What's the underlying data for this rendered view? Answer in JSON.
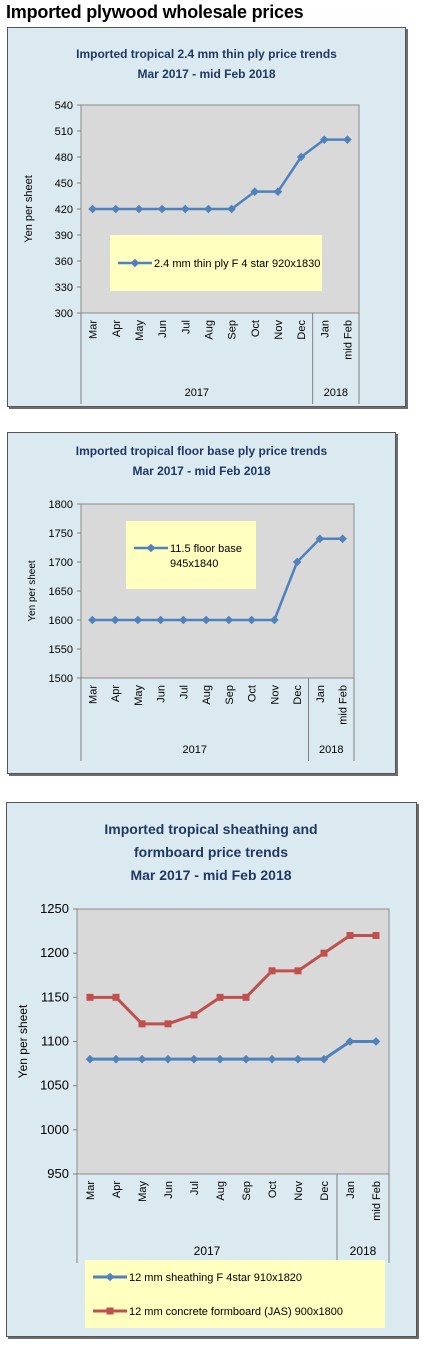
{
  "page": {
    "title": "Imported plywood wholesale prices"
  },
  "colors": {
    "panel_bg": "#dbeaf1",
    "plot_bg": "#d9d9d9",
    "blue_series": "#4f81bd",
    "red_series": "#c0504d",
    "legend_bg": "#ffffc0",
    "title": "#1f3864"
  },
  "chart_data": [
    {
      "type": "line",
      "title_lines": [
        "Imported tropical 2.4 mm thin ply price trends",
        "Mar 2017 - mid Feb 2018"
      ],
      "ylabel": "Yen per sheet",
      "ylim": [
        300,
        540
      ],
      "yticks": [
        300,
        330,
        360,
        390,
        420,
        450,
        480,
        510,
        540
      ],
      "categories": [
        "Mar",
        "Apr",
        "May",
        "Jun",
        "Jul",
        "Aug",
        "Sep",
        "Oct",
        "Nov",
        "Dec",
        "Jan",
        "mid Feb"
      ],
      "year_groups": [
        {
          "label": "2017",
          "count": 10
        },
        {
          "label": "2018",
          "count": 2
        }
      ],
      "grid": false,
      "legend_position": "center-left",
      "series": [
        {
          "name": "2.4 mm thin ply F 4 star 920x1830",
          "color": "#4f81bd",
          "marker": "diamond",
          "values": [
            420,
            420,
            420,
            420,
            420,
            420,
            420,
            440,
            440,
            480,
            500,
            500
          ]
        }
      ]
    },
    {
      "type": "line",
      "title_lines": [
        "Imported tropical floor base ply price trends",
        "Mar 2017 - mid Feb 2018"
      ],
      "ylabel": "Yen per sheet",
      "ylim": [
        1500,
        1800
      ],
      "yticks": [
        1500,
        1550,
        1600,
        1650,
        1700,
        1750,
        1800
      ],
      "categories": [
        "Mar",
        "Apr",
        "May",
        "Jun",
        "Jul",
        "Aug",
        "Sep",
        "Oct",
        "Nov",
        "Dec",
        "Jan",
        "mid Feb"
      ],
      "year_groups": [
        {
          "label": "2017",
          "count": 10
        },
        {
          "label": "2018",
          "count": 2
        }
      ],
      "grid": false,
      "legend_position": "top-left",
      "series": [
        {
          "name": "11.5 floor base 945x1840",
          "color": "#4f81bd",
          "marker": "diamond",
          "values": [
            1600,
            1600,
            1600,
            1600,
            1600,
            1600,
            1600,
            1600,
            1600,
            1700,
            1740,
            1740
          ]
        }
      ]
    },
    {
      "type": "line",
      "title_lines": [
        "Imported tropical sheathing and",
        "formboard price trends",
        "Mar 2017 - mid Feb 2018"
      ],
      "ylabel": "Yen per sheet",
      "ylim": [
        950,
        1250
      ],
      "yticks": [
        950,
        1000,
        1050,
        1100,
        1150,
        1200,
        1250
      ],
      "categories": [
        "Mar",
        "Apr",
        "May",
        "Jun",
        "Jul",
        "Aug",
        "Sep",
        "Oct",
        "Nov",
        "Dec",
        "Jan",
        "mid Feb"
      ],
      "year_groups": [
        {
          "label": "2017",
          "count": 10
        },
        {
          "label": "2018",
          "count": 2
        }
      ],
      "grid": false,
      "legend_position": "bottom",
      "series": [
        {
          "name": "12 mm sheathing F 4star 910x1820",
          "color": "#4f81bd",
          "marker": "diamond",
          "values": [
            1080,
            1080,
            1080,
            1080,
            1080,
            1080,
            1080,
            1080,
            1080,
            1080,
            1100,
            1100
          ]
        },
        {
          "name": "12 mm concrete formboard (JAS) 900x1800",
          "color": "#c0504d",
          "marker": "square",
          "values": [
            1150,
            1150,
            1120,
            1120,
            1130,
            1150,
            1150,
            1180,
            1180,
            1200,
            1220,
            1220
          ]
        }
      ]
    }
  ]
}
